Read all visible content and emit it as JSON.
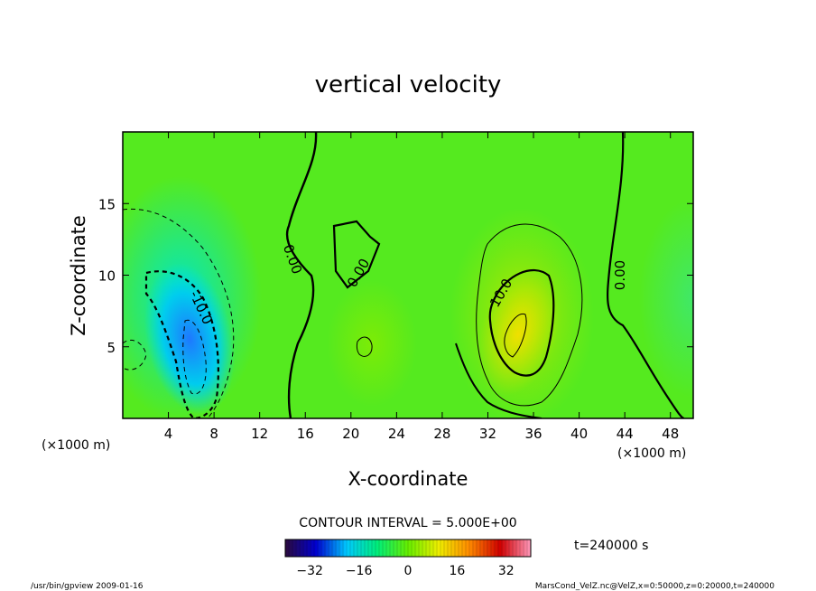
{
  "chart_data": {
    "type": "heatmap",
    "title": "vertical velocity",
    "xlabel": "X-coordinate",
    "ylabel": "Z-coordinate",
    "x_unit": "(×1000 m)",
    "xlim": [
      0,
      50
    ],
    "ylim": [
      0,
      20
    ],
    "x_ticks": [
      4,
      8,
      12,
      16,
      20,
      24,
      28,
      32,
      36,
      40,
      44,
      48
    ],
    "y_ticks": [
      5,
      10,
      15
    ],
    "contour_interval_text": "CONTOUR INTERVAL = 5.000E+00",
    "time_label": "t=240000 s",
    "colorbar": {
      "min": -40,
      "max": 40,
      "ticks": [
        -32,
        -16,
        0,
        16,
        32
      ],
      "colors": [
        "#2b0a3d",
        "#0000d0",
        "#00c8ff",
        "#00ee7a",
        "#66ee00",
        "#eeee00",
        "#ff8a00",
        "#d00000",
        "#ff99bb"
      ]
    },
    "contour_labels": [
      {
        "text": "0.00",
        "x": 14.5,
        "z": 11.0,
        "angle": 70
      },
      {
        "text": "0.00",
        "x": 21.0,
        "z": 10.0,
        "angle": -60
      },
      {
        "text": "10.0",
        "x": 33.5,
        "z": 8.6,
        "angle": -60
      },
      {
        "text": "0.00",
        "x": 44.0,
        "z": 10.0,
        "angle": -90
      },
      {
        "text": "-10.0",
        "x": 6.5,
        "z": 7.6,
        "angle": 65
      }
    ],
    "features": [
      {
        "name": "downdraft-core",
        "x": 6,
        "z": 3,
        "value": -22
      },
      {
        "name": "downdraft-outer",
        "x": 5,
        "z": 8,
        "value": -10
      },
      {
        "name": "updraft-core",
        "x": 34,
        "z": 6,
        "value": 14
      },
      {
        "name": "updraft-outer",
        "x": 35,
        "z": 8,
        "value": 9
      },
      {
        "name": "weak-updraft",
        "x": 22,
        "z": 5,
        "value": 4
      }
    ]
  },
  "footer": {
    "left": "/usr/bin/gpview  2009-01-16",
    "right": "MarsCond_VelZ.nc@VelZ,x=0:50000,z=0:20000,t=240000"
  }
}
